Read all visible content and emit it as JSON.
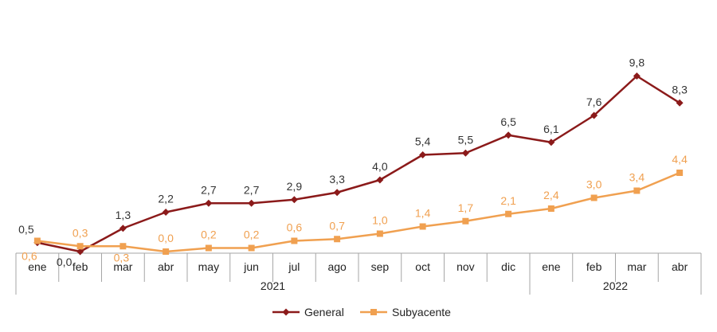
{
  "chart_data": {
    "type": "line",
    "categories": [
      "ene",
      "feb",
      "mar",
      "abr",
      "may",
      "jun",
      "jul",
      "ago",
      "sep",
      "oct",
      "nov",
      "dic",
      "ene",
      "feb",
      "mar",
      "abr"
    ],
    "category_groups": [
      {
        "label": "2021",
        "count": 12
      },
      {
        "label": "2022",
        "count": 4
      }
    ],
    "series": [
      {
        "name": "General",
        "color": "#8b1a1a",
        "marker": "diamond",
        "values": [
          0.5,
          0.0,
          1.3,
          2.2,
          2.7,
          2.7,
          2.9,
          3.3,
          4.0,
          5.4,
          5.5,
          6.5,
          6.1,
          7.6,
          9.8,
          8.3
        ],
        "labels": [
          "0,5",
          "0,0",
          "1,3",
          "2,2",
          "2,7",
          "2,7",
          "2,9",
          "3,3",
          "4,0",
          "5,4",
          "5,5",
          "6,5",
          "6,1",
          "7,6",
          "9,8",
          "8,3"
        ]
      },
      {
        "name": "Subyacente",
        "color": "#f0a050",
        "marker": "square",
        "values": [
          0.6,
          0.3,
          0.3,
          0.0,
          0.2,
          0.2,
          0.6,
          0.7,
          1.0,
          1.4,
          1.7,
          2.1,
          2.4,
          3.0,
          3.4,
          4.4
        ],
        "labels": [
          "0,6",
          "0,3",
          "0,3",
          "0,0",
          "0,2",
          "0,2",
          "0,6",
          "0,7",
          "1,0",
          "1,4",
          "1,7",
          "2,1",
          "2,4",
          "3,0",
          "3,4",
          "4,4"
        ]
      }
    ],
    "ylim": [
      0,
      10
    ],
    "grid": false,
    "legend_position": "bottom"
  }
}
